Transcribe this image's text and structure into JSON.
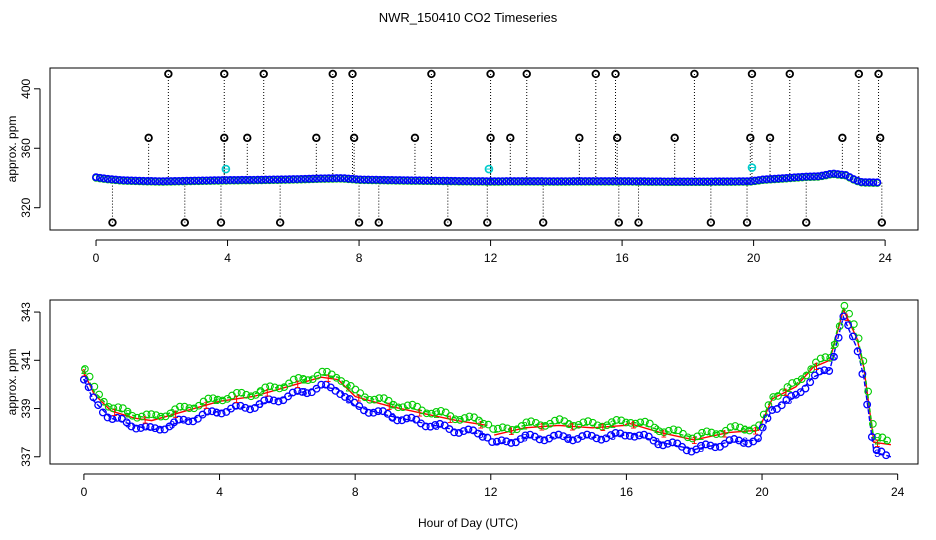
{
  "chart_data": {
    "title": "NWR_150410  CO2 Timeseries",
    "xlabel": "Hour of Day (UTC)",
    "colors": {
      "series1": "#ff0000",
      "series2": "#00cc00",
      "series3": "#0000ff",
      "flagged": "#00cccc",
      "outlier": "#000000"
    },
    "panels": [
      {
        "type": "scatter",
        "name": "overview",
        "ylabel": "approx. ppm",
        "xlim": [
          -1.4,
          25.0
        ],
        "ylim": [
          305,
          414
        ],
        "xticks": [
          0,
          4,
          8,
          12,
          16,
          20,
          24
        ],
        "yticks": [
          320,
          360,
          400
        ],
        "baseline": [
          [
            0.0,
            340.5
          ],
          [
            0.3,
            339.5
          ],
          [
            0.8,
            338.5
          ],
          [
            1.5,
            338.0
          ],
          [
            2.0,
            337.8
          ],
          [
            3.0,
            338.2
          ],
          [
            4.0,
            338.6
          ],
          [
            5.0,
            338.8
          ],
          [
            6.0,
            339.2
          ],
          [
            7.0,
            339.8
          ],
          [
            7.5,
            339.9
          ],
          [
            8.0,
            339.0
          ],
          [
            9.0,
            338.6
          ],
          [
            10.0,
            338.3
          ],
          [
            11.0,
            338.0
          ],
          [
            12.0,
            337.8
          ],
          [
            13.0,
            337.9
          ],
          [
            14.0,
            337.8
          ],
          [
            15.0,
            337.9
          ],
          [
            16.0,
            337.9
          ],
          [
            17.0,
            337.7
          ],
          [
            18.0,
            337.6
          ],
          [
            19.0,
            337.7
          ],
          [
            19.9,
            337.8
          ],
          [
            20.3,
            339.0
          ],
          [
            21.0,
            340.0
          ],
          [
            21.5,
            340.8
          ],
          [
            22.0,
            341.2
          ],
          [
            22.4,
            343.0
          ],
          [
            22.8,
            342.0
          ],
          [
            23.1,
            338.5
          ],
          [
            23.3,
            337.2
          ],
          [
            23.8,
            337.0
          ]
        ],
        "outliers": [
          [
            0.5,
            310
          ],
          [
            1.6,
            367
          ],
          [
            2.2,
            410
          ],
          [
            2.7,
            310
          ],
          [
            3.8,
            310
          ],
          [
            3.9,
            367
          ],
          [
            3.9,
            410
          ],
          [
            4.6,
            367
          ],
          [
            5.1,
            410
          ],
          [
            5.6,
            310
          ],
          [
            6.7,
            367
          ],
          [
            7.2,
            410
          ],
          [
            7.8,
            410
          ],
          [
            7.85,
            367
          ],
          [
            8.0,
            310
          ],
          [
            8.6,
            310
          ],
          [
            9.7,
            367
          ],
          [
            10.2,
            410
          ],
          [
            10.7,
            310
          ],
          [
            11.9,
            310
          ],
          [
            12.0,
            367
          ],
          [
            12.0,
            410
          ],
          [
            12.6,
            367
          ],
          [
            13.1,
            410
          ],
          [
            13.6,
            310
          ],
          [
            14.7,
            367
          ],
          [
            15.2,
            410
          ],
          [
            15.8,
            410
          ],
          [
            15.85,
            367
          ],
          [
            15.9,
            310
          ],
          [
            16.5,
            310
          ],
          [
            17.6,
            367
          ],
          [
            18.2,
            410
          ],
          [
            18.7,
            310
          ],
          [
            19.8,
            310
          ],
          [
            19.9,
            367
          ],
          [
            19.95,
            410
          ],
          [
            20.5,
            367
          ],
          [
            21.1,
            410
          ],
          [
            21.6,
            310
          ],
          [
            22.7,
            367
          ],
          [
            23.2,
            410
          ],
          [
            23.8,
            410
          ],
          [
            23.85,
            367
          ],
          [
            23.9,
            310
          ]
        ],
        "flagged": [
          [
            3.95,
            346
          ],
          [
            11.95,
            346
          ],
          [
            19.95,
            347
          ]
        ]
      },
      {
        "type": "line",
        "name": "detail",
        "ylabel": "approx. ppm",
        "xlim": [
          -1.0,
          24.6
        ],
        "ylim": [
          336.7,
          343.5
        ],
        "xticks": [
          0,
          4,
          8,
          12,
          16,
          20,
          24
        ],
        "yticks": [
          337,
          339,
          341,
          343
        ],
        "series": [
          {
            "name": "1",
            "marker": "1",
            "color": "#ff0000",
            "values": [
              [
                0.0,
                340.5
              ],
              [
                0.3,
                339.6
              ],
              [
                0.8,
                338.9
              ],
              [
                1.5,
                338.6
              ],
              [
                2.0,
                338.5
              ],
              [
                3.0,
                338.9
              ],
              [
                4.0,
                339.3
              ],
              [
                5.0,
                339.5
              ],
              [
                6.0,
                339.9
              ],
              [
                7.0,
                340.3
              ],
              [
                7.5,
                340.2
              ],
              [
                8.0,
                339.5
              ],
              [
                9.0,
                339.1
              ],
              [
                10.0,
                338.8
              ],
              [
                11.0,
                338.5
              ],
              [
                11.9,
                338.3
              ],
              [
                12.1,
                337.9
              ],
              [
                13.0,
                338.2
              ],
              [
                14.0,
                338.3
              ],
              [
                15.0,
                338.2
              ],
              [
                15.95,
                338.3
              ],
              [
                16.05,
                338.4
              ],
              [
                17.0,
                338.0
              ],
              [
                18.0,
                337.7
              ],
              [
                19.0,
                338.0
              ],
              [
                19.9,
                338.1
              ],
              [
                20.3,
                339.4
              ],
              [
                21.0,
                339.9
              ],
              [
                21.5,
                340.7
              ],
              [
                22.0,
                341.0
              ],
              [
                22.4,
                343.1
              ],
              [
                22.8,
                341.9
              ],
              [
                23.0,
                340.7
              ],
              [
                23.3,
                337.6
              ],
              [
                23.8,
                337.5
              ]
            ]
          },
          {
            "name": "2",
            "marker": "2",
            "color": "#00cc00",
            "values": [
              [
                0.0,
                340.6
              ],
              [
                0.3,
                339.7
              ],
              [
                0.8,
                339.0
              ],
              [
                1.5,
                338.7
              ],
              [
                2.0,
                338.6
              ],
              [
                3.0,
                339.0
              ],
              [
                4.0,
                339.4
              ],
              [
                5.0,
                339.6
              ],
              [
                6.0,
                340.0
              ],
              [
                7.0,
                340.4
              ],
              [
                7.5,
                340.3
              ],
              [
                8.0,
                339.6
              ],
              [
                9.0,
                339.2
              ],
              [
                10.0,
                338.9
              ],
              [
                11.0,
                338.6
              ],
              [
                11.9,
                338.4
              ],
              [
                12.1,
                338.0
              ],
              [
                13.0,
                338.3
              ],
              [
                14.0,
                338.4
              ],
              [
                15.0,
                338.3
              ],
              [
                15.95,
                338.4
              ],
              [
                16.05,
                338.5
              ],
              [
                17.0,
                338.1
              ],
              [
                18.0,
                337.8
              ],
              [
                19.0,
                338.1
              ],
              [
                19.9,
                338.2
              ],
              [
                20.3,
                339.5
              ],
              [
                21.0,
                340.0
              ],
              [
                21.5,
                340.8
              ],
              [
                22.0,
                341.1
              ],
              [
                22.4,
                343.2
              ],
              [
                22.8,
                342.0
              ],
              [
                23.0,
                340.8
              ],
              [
                23.3,
                337.7
              ],
              [
                23.8,
                337.6
              ]
            ]
          },
          {
            "name": "3",
            "marker": "3",
            "color": "#0000ff",
            "values": [
              [
                0.0,
                340.2
              ],
              [
                0.3,
                339.3
              ],
              [
                0.8,
                338.6
              ],
              [
                1.5,
                338.3
              ],
              [
                2.0,
                338.1
              ],
              [
                3.0,
                338.5
              ],
              [
                4.0,
                338.9
              ],
              [
                5.0,
                339.1
              ],
              [
                6.0,
                339.5
              ],
              [
                7.0,
                339.9
              ],
              [
                7.5,
                339.8
              ],
              [
                8.0,
                339.1
              ],
              [
                9.0,
                338.7
              ],
              [
                10.0,
                338.4
              ],
              [
                11.0,
                338.1
              ],
              [
                11.9,
                337.9
              ],
              [
                12.1,
                337.5
              ],
              [
                13.0,
                337.8
              ],
              [
                14.0,
                337.8
              ],
              [
                15.0,
                337.8
              ],
              [
                15.95,
                337.9
              ],
              [
                16.05,
                338.0
              ],
              [
                17.0,
                337.6
              ],
              [
                18.0,
                337.3
              ],
              [
                19.0,
                337.6
              ],
              [
                19.9,
                337.7
              ],
              [
                20.3,
                339.0
              ],
              [
                21.0,
                339.5
              ],
              [
                21.5,
                340.3
              ],
              [
                22.0,
                340.6
              ],
              [
                22.4,
                342.8
              ],
              [
                22.8,
                341.5
              ],
              [
                23.0,
                340.3
              ],
              [
                23.3,
                337.2
              ],
              [
                23.8,
                337.0
              ]
            ]
          }
        ]
      }
    ]
  }
}
